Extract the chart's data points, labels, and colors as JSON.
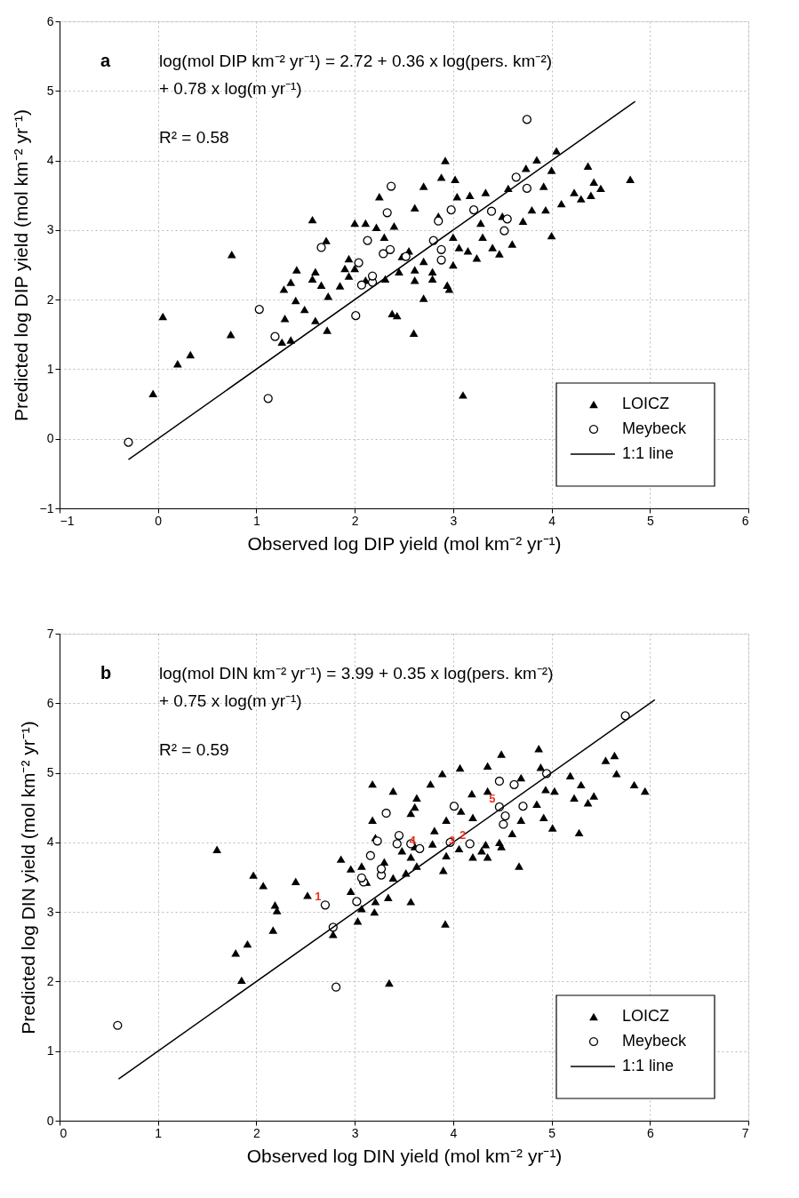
{
  "chart_data": [
    {
      "type": "scatter",
      "title": "a",
      "xlabel": "Observed log DIP yield (mol km⁻² yr⁻¹)",
      "ylabel": "Predicted log DIP yield (mol km⁻² yr⁻¹)",
      "annotations": [
        "log(mol DIP km⁻² yr⁻¹) = 2.72 + 0.36 x log(pers. km⁻²)",
        "+ 0.78 x log(m yr⁻¹)",
        "R² = 0.58"
      ],
      "xlim": [
        -1,
        6
      ],
      "xticks": [
        -1,
        0,
        1,
        2,
        3,
        4,
        5,
        6
      ],
      "ylim": [
        -1,
        6
      ],
      "yticks": [
        -1,
        0,
        1,
        2,
        3,
        4,
        5,
        6
      ],
      "grid": true,
      "legend": "bottom right",
      "series": [
        {
          "name": "LOICZ",
          "type": "scatter",
          "marker": "triangle",
          "color": "#000000",
          "x": [
            -0.05,
            0.05,
            0.2,
            0.33,
            0.74,
            0.75,
            1.57,
            1.35,
            1.26,
            1.29,
            1.28,
            1.4,
            1.49,
            1.6,
            1.72,
            1.73,
            1.66,
            1.57,
            1.41,
            1.35,
            1.71,
            1.94,
            1.94,
            2.0,
            2.11,
            2.22,
            2.11,
            2.31,
            2.38,
            2.43,
            2.25,
            2.4,
            2.48,
            2.61,
            2.6,
            2.7,
            2.61,
            2.79,
            2.79,
            2.94,
            2.96,
            3.06,
            3.24,
            3.47,
            3.28,
            2.61,
            2.7,
            2.88,
            2.92,
            3.02,
            3.04,
            3.17,
            3.33,
            3.56,
            3.74,
            3.85,
            4.05,
            4.0,
            3.92,
            4.37,
            4.43,
            4.8,
            4.23,
            4.1,
            3.94,
            3.8,
            3.71,
            4.0,
            3.1,
            4.3,
            4.5,
            4.4,
            2.55,
            2.7,
            3.0,
            3.15,
            3.4,
            3.6,
            3.0,
            2.85,
            3.5,
            3.3,
            2.3,
            2.45,
            1.85,
            1.9,
            2.0,
            1.6
          ],
          "values": [
            0.65,
            1.76,
            1.08,
            1.21,
            1.5,
            2.65,
            3.15,
            1.42,
            1.39,
            1.73,
            2.15,
            1.99,
            1.86,
            1.7,
            1.56,
            2.05,
            2.21,
            2.3,
            2.43,
            2.25,
            2.85,
            2.34,
            2.59,
            3.1,
            3.1,
            3.04,
            2.28,
            2.3,
            1.8,
            1.77,
            3.48,
            3.06,
            2.62,
            2.43,
            1.52,
            2.02,
            2.28,
            2.3,
            2.4,
            2.21,
            2.15,
            2.75,
            2.6,
            2.66,
            3.1,
            3.32,
            3.63,
            3.76,
            4.0,
            3.73,
            3.48,
            3.5,
            3.54,
            3.6,
            3.89,
            4.01,
            4.14,
            3.86,
            3.63,
            3.92,
            3.69,
            3.73,
            3.54,
            3.38,
            3.29,
            3.29,
            3.13,
            2.92,
            0.63,
            3.45,
            3.6,
            3.5,
            2.7,
            2.55,
            2.5,
            2.7,
            2.75,
            2.8,
            2.9,
            3.2,
            3.2,
            2.9,
            2.9,
            2.4,
            2.2,
            2.45,
            2.45,
            2.4
          ]
        },
        {
          "name": "Meybeck",
          "type": "scatter",
          "marker": "circle",
          "color": "#000000",
          "x": [
            -0.3,
            1.03,
            1.19,
            1.12,
            2.01,
            2.18,
            3.75,
            2.37,
            2.33,
            1.66,
            2.13,
            3.64,
            3.75,
            2.98,
            3.21,
            3.39,
            3.55,
            3.52,
            2.85,
            2.8,
            2.88,
            2.88,
            2.52,
            2.36,
            2.29,
            2.04,
            2.07,
            2.18
          ],
          "values": [
            -0.05,
            1.86,
            1.47,
            0.58,
            1.77,
            2.25,
            4.59,
            3.63,
            3.25,
            2.75,
            2.85,
            3.76,
            3.6,
            3.29,
            3.29,
            3.27,
            3.16,
            2.99,
            3.13,
            2.85,
            2.72,
            2.57,
            2.62,
            2.72,
            2.66,
            2.53,
            2.21,
            2.34
          ]
        },
        {
          "name": "1:1 line",
          "type": "line",
          "color": "#000000",
          "x": [
            -0.3,
            4.85
          ],
          "values": [
            -0.3,
            4.85
          ]
        }
      ]
    },
    {
      "type": "scatter",
      "title": "b",
      "xlabel": "Observed log DIN yield (mol km⁻² yr⁻¹)",
      "ylabel": "Predicted log DIN yield (mol km⁻² yr⁻¹)",
      "annotations": [
        "log(mol DIN km⁻² yr⁻¹) = 3.99 + 0.35 x log(pers. km⁻²)",
        "+ 0.75 x log(m yr⁻¹)",
        "R² = 0.59",
        {
          "text": "1",
          "x": 2.7,
          "y": 3.1
        },
        {
          "text": "2",
          "x": 4.17,
          "y": 3.98
        },
        {
          "text": "3",
          "x": 4.06,
          "y": 3.91
        },
        {
          "text": "4",
          "x": 3.66,
          "y": 3.91
        },
        {
          "text": "5",
          "x": 4.47,
          "y": 4.51
        }
      ],
      "xlim": [
        0,
        7
      ],
      "xticks": [
        0,
        1,
        2,
        3,
        4,
        5,
        6,
        7
      ],
      "ylim": [
        0,
        7
      ],
      "yticks": [
        0,
        1,
        2,
        3,
        4,
        5,
        6,
        7
      ],
      "grid": true,
      "legend": "bottom right",
      "series": [
        {
          "name": "LOICZ",
          "type": "scatter",
          "marker": "triangle",
          "color": "#000000",
          "x": [
            1.6,
            1.97,
            2.07,
            2.4,
            2.52,
            2.19,
            2.86,
            3.18,
            3.39,
            3.18,
            3.21,
            2.96,
            3.63,
            3.77,
            3.89,
            4.07,
            4.35,
            4.49,
            4.87,
            4.89,
            4.19,
            4.35,
            4.69,
            5.19,
            5.3,
            5.55,
            5.64,
            5.66,
            5.84,
            5.95,
            5.23,
            5.37,
            5.43,
            4.94,
            5.03,
            4.85,
            4.92,
            5.01,
            5.28,
            4.69,
            4.6,
            4.67,
            4.47,
            4.33,
            4.2,
            4.08,
            3.93,
            3.81,
            3.79,
            3.93,
            4.06,
            3.9,
            3.61,
            3.57,
            3.63,
            3.52,
            3.39,
            3.3,
            3.48,
            3.57,
            3.61,
            4.29,
            4.35,
            4.49,
            4.2,
            3.07,
            3.12,
            2.96,
            3.21,
            3.34,
            3.57,
            2.21,
            2.17,
            1.79,
            1.91,
            1.85,
            2.78,
            3.03,
            3.07,
            3.2,
            3.92,
            3.35
          ],
          "values": [
            3.9,
            3.53,
            3.38,
            3.44,
            3.24,
            3.1,
            3.76,
            4.84,
            4.74,
            4.32,
            4.07,
            3.62,
            4.64,
            4.84,
            4.99,
            5.07,
            5.1,
            5.27,
            5.35,
            5.08,
            4.7,
            4.74,
            4.93,
            4.96,
            4.83,
            5.18,
            5.25,
            4.99,
            4.83,
            4.74,
            4.64,
            4.57,
            4.67,
            4.76,
            4.74,
            4.55,
            4.36,
            4.21,
            4.14,
            4.32,
            4.13,
            3.66,
            4.0,
            3.97,
            4.36,
            4.45,
            4.32,
            4.17,
            3.98,
            3.81,
            3.91,
            3.6,
            3.94,
            3.79,
            3.66,
            3.56,
            3.49,
            3.72,
            3.88,
            4.42,
            4.51,
            3.88,
            3.79,
            3.94,
            3.79,
            3.66,
            3.43,
            3.3,
            3.15,
            3.21,
            3.15,
            3.02,
            2.74,
            2.41,
            2.54,
            2.02,
            2.68,
            2.87,
            3.05,
            3.0,
            2.83,
            1.98
          ]
        },
        {
          "name": "Meybeck",
          "type": "scatter",
          "marker": "circle",
          "color": "#000000",
          "x": [
            0.59,
            2.81,
            2.78,
            2.7,
            3.02,
            3.09,
            3.27,
            5.75,
            4.95,
            4.47,
            4.62,
            4.47,
            4.71,
            4.53,
            4.51,
            4.01,
            4.17,
            3.97,
            3.32,
            3.45,
            3.43,
            3.23,
            3.16,
            3.27,
            3.57,
            3.66,
            3.07
          ],
          "values": [
            1.37,
            1.92,
            2.78,
            3.1,
            3.15,
            3.43,
            3.53,
            5.82,
            4.99,
            4.88,
            4.83,
            4.51,
            4.52,
            4.38,
            4.26,
            4.52,
            3.98,
            4.0,
            4.42,
            4.1,
            3.98,
            4.02,
            3.81,
            3.62,
            3.98,
            3.91,
            3.49
          ]
        },
        {
          "name": "1:1 line",
          "type": "line",
          "color": "#000000",
          "x": [
            0.6,
            6.05
          ],
          "values": [
            0.6,
            6.05
          ]
        }
      ]
    }
  ]
}
